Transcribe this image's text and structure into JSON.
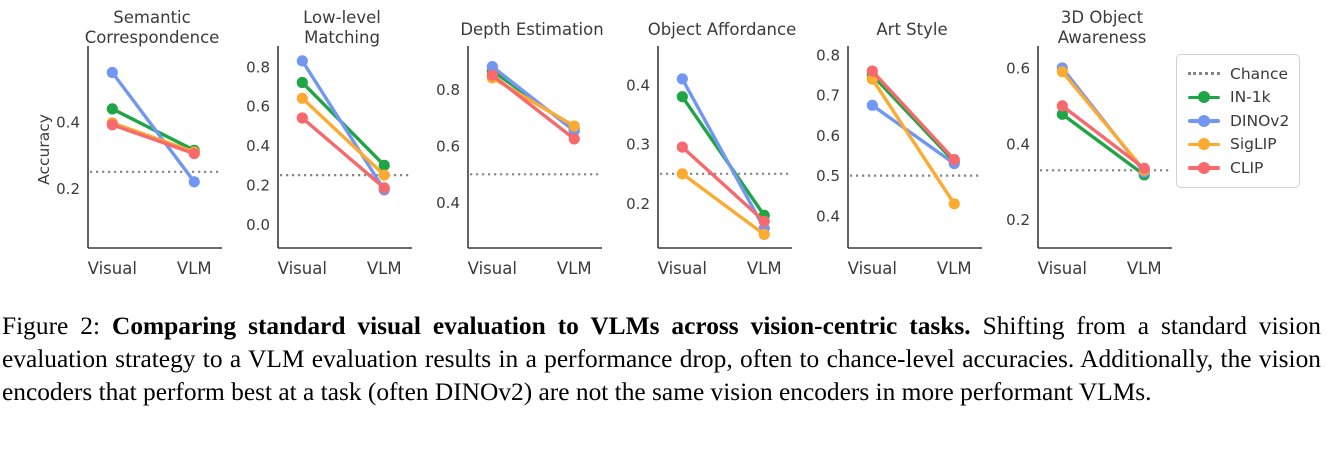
{
  "figure": {
    "ylabel": "Accuracy",
    "x_categories": [
      "Visual",
      "VLM"
    ],
    "axis_color": "#3b3b3b",
    "chance_color": "#858585",
    "series_colors": {
      "IN-1k": "#1fa546",
      "DINOv2": "#7297f2",
      "SigLIP": "#fcab32",
      "CLIP": "#f6696c"
    },
    "legend": {
      "items": [
        {
          "label": "Chance",
          "style": "dotted",
          "color": "#858585"
        },
        {
          "label": "IN-1k",
          "style": "solid",
          "color": "#1fa546"
        },
        {
          "label": "DINOv2",
          "style": "solid",
          "color": "#7297f2"
        },
        {
          "label": "SigLIP",
          "style": "solid",
          "color": "#fcab32"
        },
        {
          "label": "CLIP",
          "style": "solid",
          "color": "#f6696c"
        }
      ]
    }
  },
  "chart_data": [
    {
      "type": "line",
      "title": "Semantic Correspondence",
      "title_lines": [
        "Semantic",
        "Correspondence"
      ],
      "categories": [
        "Visual",
        "VLM"
      ],
      "ylabel": "Accuracy",
      "yticks": [
        0.2,
        0.4
      ],
      "ylim": [
        0.02,
        0.615
      ],
      "chance": 0.25,
      "series": [
        {
          "name": "IN-1k",
          "values": [
            0.44,
            0.315
          ]
        },
        {
          "name": "DINOv2",
          "values": [
            0.55,
            0.22
          ]
        },
        {
          "name": "SigLIP",
          "values": [
            0.398,
            0.31
          ]
        },
        {
          "name": "CLIP",
          "values": [
            0.392,
            0.305
          ]
        }
      ]
    },
    {
      "type": "line",
      "title": "Low-level Matching",
      "title_lines": [
        "Low-level",
        "Matching"
      ],
      "categories": [
        "Visual",
        "VLM"
      ],
      "ylabel": "",
      "yticks": [
        0.0,
        0.2,
        0.4,
        0.6,
        0.8
      ],
      "ylim": [
        -0.12,
        0.88
      ],
      "chance": 0.25,
      "series": [
        {
          "name": "IN-1k",
          "values": [
            0.72,
            0.3
          ]
        },
        {
          "name": "DINOv2",
          "values": [
            0.83,
            0.175
          ]
        },
        {
          "name": "SigLIP",
          "values": [
            0.64,
            0.25
          ]
        },
        {
          "name": "CLIP",
          "values": [
            0.54,
            0.185
          ]
        }
      ]
    },
    {
      "type": "line",
      "title": "Depth Estimation",
      "title_lines": [
        "Depth Estimation"
      ],
      "categories": [
        "Visual",
        "VLM"
      ],
      "ylabel": "",
      "yticks": [
        0.4,
        0.6,
        0.8
      ],
      "ylim": [
        0.24,
        0.935
      ],
      "chance": 0.5,
      "series": [
        {
          "name": "IN-1k",
          "values": [
            0.865,
            0.66
          ]
        },
        {
          "name": "DINOv2",
          "values": [
            0.88,
            0.653
          ]
        },
        {
          "name": "SigLIP",
          "values": [
            0.84,
            0.67
          ]
        },
        {
          "name": "CLIP",
          "values": [
            0.85,
            0.625
          ]
        }
      ]
    },
    {
      "type": "line",
      "title": "Object Affordance",
      "title_lines": [
        "Object Affordance"
      ],
      "categories": [
        "Visual",
        "VLM"
      ],
      "ylabel": "",
      "yticks": [
        0.2,
        0.3,
        0.4
      ],
      "ylim": [
        0.125,
        0.457
      ],
      "chance": 0.25,
      "series": [
        {
          "name": "IN-1k",
          "values": [
            0.38,
            0.18
          ]
        },
        {
          "name": "DINOv2",
          "values": [
            0.41,
            0.158
          ]
        },
        {
          "name": "SigLIP",
          "values": [
            0.25,
            0.148
          ]
        },
        {
          "name": "CLIP",
          "values": [
            0.295,
            0.17
          ]
        }
      ]
    },
    {
      "type": "line",
      "title": "Art Style",
      "title_lines": [
        "Art Style"
      ],
      "categories": [
        "Visual",
        "VLM"
      ],
      "ylabel": "",
      "yticks": [
        0.4,
        0.5,
        0.6,
        0.7,
        0.8
      ],
      "ylim": [
        0.32,
        0.81
      ],
      "chance": 0.5,
      "series": [
        {
          "name": "IN-1k",
          "values": [
            0.75,
            0.535
          ]
        },
        {
          "name": "DINOv2",
          "values": [
            0.675,
            0.53
          ]
        },
        {
          "name": "SigLIP",
          "values": [
            0.74,
            0.43
          ]
        },
        {
          "name": "CLIP",
          "values": [
            0.76,
            0.54
          ]
        }
      ]
    },
    {
      "type": "line",
      "title": "3D Object Awareness",
      "title_lines": [
        "3D Object",
        "Awareness"
      ],
      "categories": [
        "Visual",
        "VLM"
      ],
      "ylabel": "",
      "yticks": [
        0.2,
        0.4,
        0.6
      ],
      "ylim": [
        0.125,
        0.645
      ],
      "chance": 0.33,
      "series": [
        {
          "name": "IN-1k",
          "values": [
            0.478,
            0.318
          ]
        },
        {
          "name": "DINOv2",
          "values": [
            0.6,
            0.325
          ]
        },
        {
          "name": "SigLIP",
          "values": [
            0.59,
            0.33
          ]
        },
        {
          "name": "CLIP",
          "values": [
            0.5,
            0.335
          ]
        }
      ]
    }
  ],
  "caption": {
    "prefix": "Figure 2:",
    "bold": "Comparing standard visual evaluation to VLMs across vision-centric tasks.",
    "rest": "Shifting from a standard vision evaluation strategy to a VLM evaluation results in a performance drop, often to chance-level accuracies. Additionally, the vision encoders that perform best at a task (often DINOv2) are not the same vision encoders in more performant VLMs."
  }
}
